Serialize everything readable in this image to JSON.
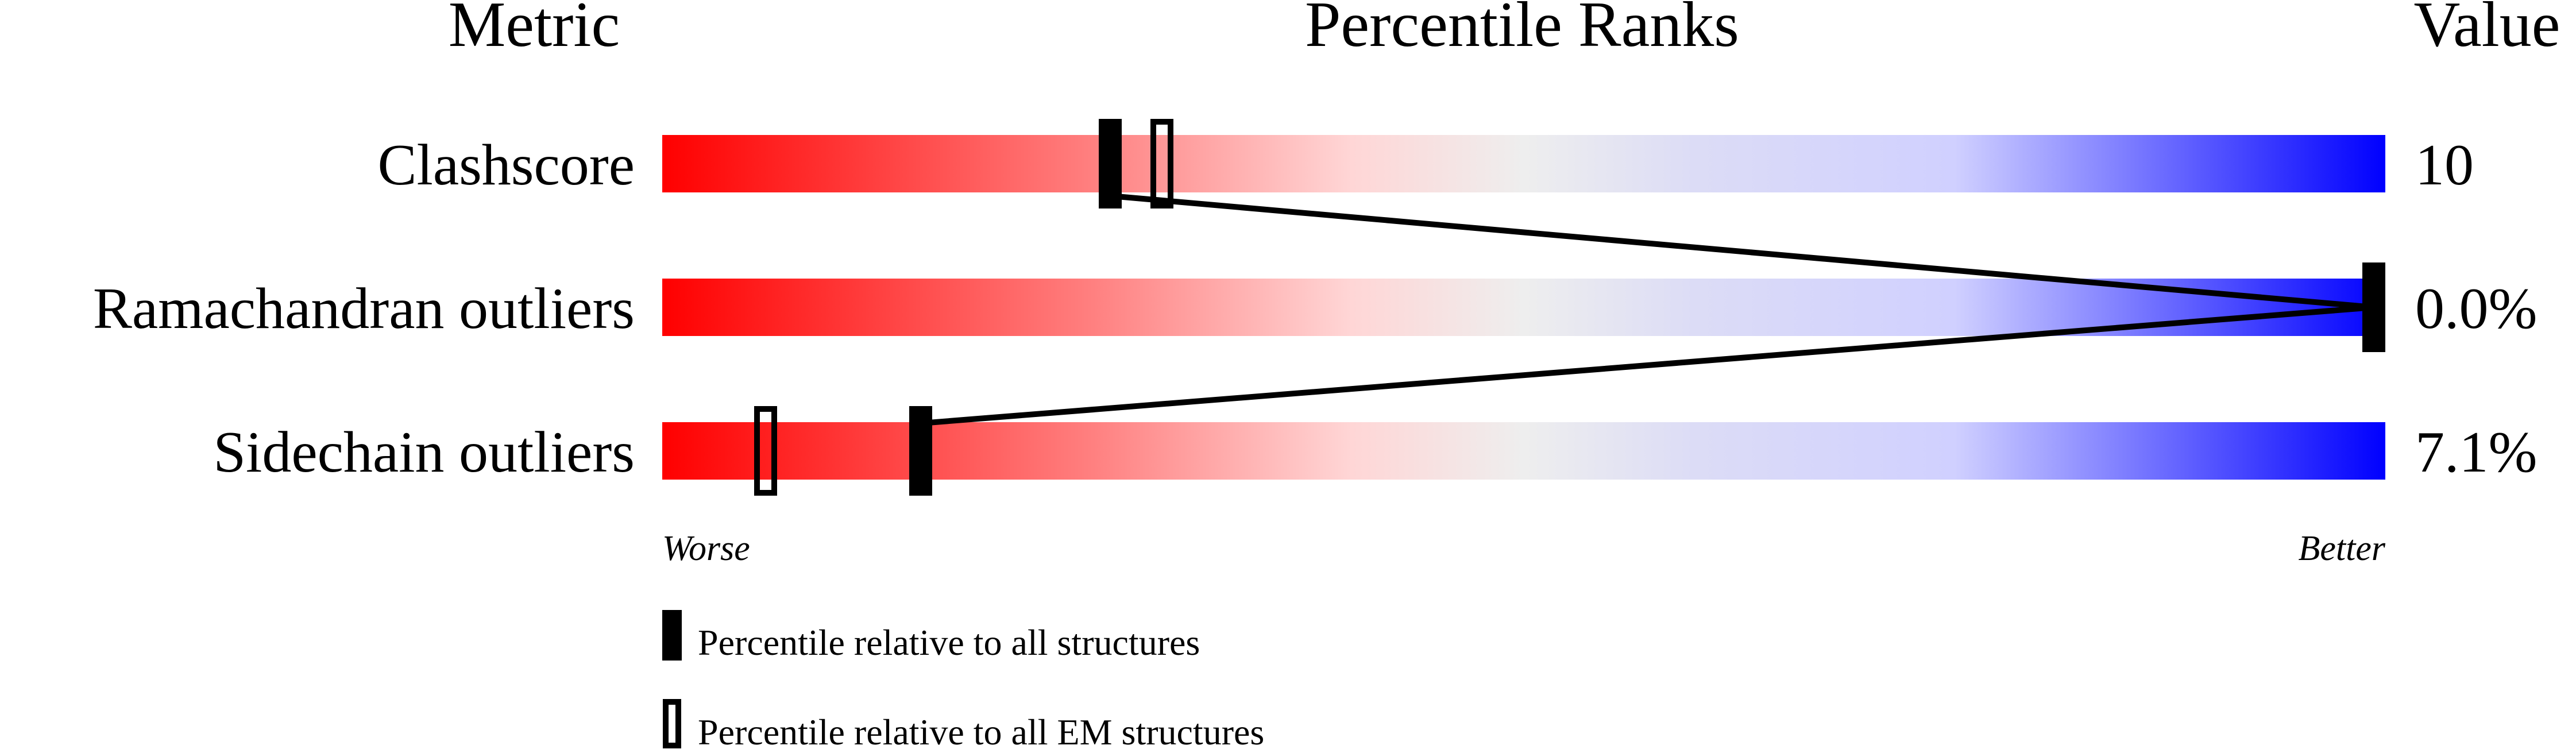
{
  "chart_data": {
    "type": "percentile-bar",
    "headers": {
      "metric": "Metric",
      "ranks": "Percentile Ranks",
      "value": "Value"
    },
    "xlim": [
      0,
      100
    ],
    "metrics": [
      {
        "name": "Clashscore",
        "value": "10",
        "percentile_all": 26,
        "percentile_em": 29
      },
      {
        "name": "Ramachandran outliers",
        "value": "0.0%",
        "percentile_all": 100,
        "percentile_em": 100
      },
      {
        "name": "Sidechain outliers",
        "value": "7.1%",
        "percentile_all": 15,
        "percentile_em": 6
      }
    ],
    "axis": {
      "worse": "Worse",
      "better": "Better"
    },
    "legend": {
      "all": "Percentile relative to all structures",
      "em": "Percentile relative to all EM structures"
    },
    "colors": {
      "worse": "#ff0000",
      "middle": "#eeeeee",
      "better": "#0000ff",
      "marker": "#000000"
    }
  }
}
